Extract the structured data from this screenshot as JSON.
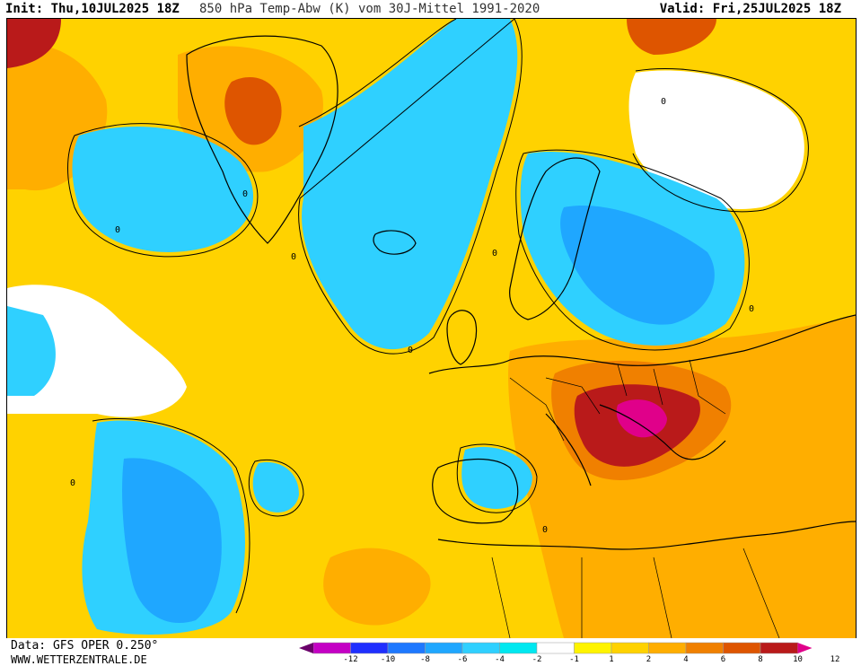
{
  "header": {
    "init": "Init: Thu,10JUL2025 18Z",
    "title": "850 hPa Temp-Abw (K) vom 30J-Mittel 1991-2020",
    "valid": "Valid: Fri,25JUL2025 18Z"
  },
  "footer": {
    "data_source": "Data: GFS OPER 0.250°",
    "website": "WWW.WETTERZENTRALE.DE"
  },
  "legend": {
    "ticks": [
      "-12",
      "-10",
      "-8",
      "-6",
      "-4",
      "-2",
      "-1",
      "1",
      "2",
      "4",
      "6",
      "8",
      "10",
      "12"
    ],
    "colors": [
      "#6a006a",
      "#c400c4",
      "#1f2fff",
      "#1e78ff",
      "#1fa7ff",
      "#2fd0ff",
      "#00e8f0",
      "#ffffff",
      "#fff400",
      "#ffd200",
      "#ffae00",
      "#f08000",
      "#de5500",
      "#b91a1a",
      "#e0008a"
    ]
  },
  "map": {
    "contour_labels": [
      "0",
      "0",
      "0",
      "0",
      "0",
      "0",
      "0",
      "0",
      "0"
    ]
  }
}
